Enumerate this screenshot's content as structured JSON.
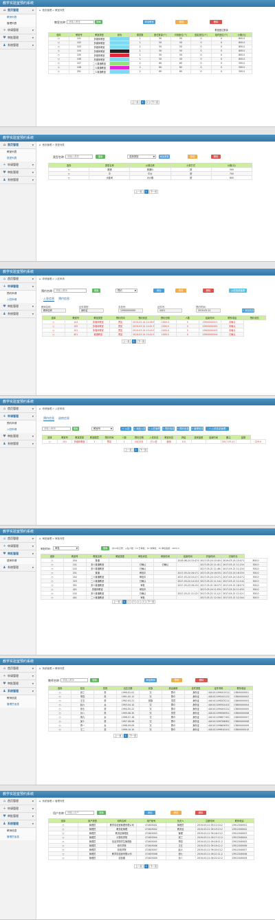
{
  "app_title": "教学实验室预约系统",
  "s1": {
    "menu": [
      {
        "icon": "home",
        "label": "首页管理",
        "active": true
      },
      {
        "sub": "教师列表",
        "active": true
      },
      {
        "sub": "管理列表"
      },
      {
        "icon": "plus",
        "label": "申请管理"
      },
      {
        "icon": "heart",
        "label": "审批管理"
      },
      {
        "icon": "user",
        "label": "系统管理"
      }
    ],
    "crumb": "首页管理 > 教室列表",
    "filter_label": "教室名称：",
    "filter_placeholder": "请输入教室",
    "search": "搜索",
    "b_add": "添加教室",
    "b_edit": "修改",
    "b_del": "删除",
    "group_header": "教室座位数量",
    "headers": [
      "选择",
      "教室号",
      "教室类型",
      "颜色",
      "楼层数",
      "座位数量(个)",
      "可用座位(个)",
      "固定座位(个)",
      "临时座位(个)",
      "价格(元)"
    ],
    "rows": [
      [
        "101",
        "多媒体教室",
        "",
        "1",
        "50",
        "50",
        "0",
        "0",
        "800.0"
      ],
      [
        "102",
        "多媒体教室",
        "",
        "1",
        "50",
        "50",
        "0",
        "0",
        "800.0"
      ],
      [
        "103",
        "多媒体教室",
        "",
        "1",
        "50",
        "50",
        "0",
        "0",
        "800.0"
      ],
      [
        "104",
        "多媒体教室",
        "",
        "1",
        "50",
        "50",
        "0",
        "0",
        "800.0"
      ],
      [
        "105",
        "多媒体教室",
        "",
        "1",
        "50",
        "50",
        "0",
        "0",
        "800.0"
      ],
      [
        "106",
        "多媒体教室",
        "",
        "1",
        "50",
        "50",
        "0",
        "0",
        "800.0"
      ],
      [
        "107",
        "二人普通教室",
        "",
        "2",
        "60",
        "60",
        "0",
        "0",
        "500.0"
      ],
      [
        "108",
        "二人普通教室",
        "",
        "2",
        "60",
        "60",
        "0",
        "0",
        "500.0"
      ],
      [
        "201",
        "二人普通教室",
        "",
        "2",
        "60",
        "60",
        "0",
        "0",
        "500.0"
      ]
    ],
    "colors": [
      "#7fd9f2",
      "#7fd9f2",
      "#7fd9f2",
      "#222222",
      "#e0263a",
      "#7fd9f2",
      "#98e07a",
      "#e028e0",
      "#7fd9f2"
    ],
    "pager": [
      "上一页",
      "1",
      "2",
      "下一页"
    ]
  },
  "s2": {
    "menu": [
      {
        "icon": "home",
        "label": "首页管理",
        "active": true
      },
      {
        "sub": "教室列表"
      },
      {
        "sub": "类型列表",
        "active": true
      },
      {
        "icon": "plus",
        "label": "申请管理"
      },
      {
        "icon": "heart",
        "label": "审批管理"
      },
      {
        "icon": "user",
        "label": "系统管理"
      }
    ],
    "crumb": "首页管理 > 类型列表",
    "filter_label": "类型名称：",
    "filter_placeholder": "请输入类型",
    "search": "搜索",
    "sel_value": "选择类型",
    "b_add": "添加类型",
    "b_edit": "修改",
    "b_del": "删除",
    "headers": [
      "选择",
      "类型名称",
      "价格名称",
      "计费方式",
      "价格(元)"
    ],
    "rows": [
      [
        "普通",
        "普通价",
        "按",
        "500"
      ],
      [
        "中",
        "中价",
        "按",
        "700"
      ],
      [
        "大套间",
        "大价格",
        "按",
        "800"
      ]
    ],
    "pager": [
      "上一页",
      "1",
      "下一页"
    ]
  },
  "s3": {
    "menu": [
      {
        "icon": "home",
        "label": "首页管理"
      },
      {
        "icon": "plus",
        "label": "申请管理",
        "active": true
      },
      {
        "sub": "预约申请"
      },
      {
        "sub": "入驻申请",
        "active": true
      },
      {
        "icon": "heart",
        "label": "审批管理"
      },
      {
        "icon": "user",
        "label": "系统管理"
      }
    ],
    "crumb": "申请管理 > 入驻申请",
    "filter_label": "预约名称：",
    "filter_placeholder": "请输入教师",
    "search": "搜索",
    "sel_value": "预约",
    "b_add": "添加",
    "b_edit": "修改",
    "b_del": "删除",
    "b_manage": "入驻信息管理",
    "tabs": [
      "入驻信息",
      "预约信息"
    ],
    "fields": [
      {
        "label": "教师名称：",
        "value": "教师名称"
      },
      {
        "label": "证件类型：",
        "value": "身份证"
      },
      {
        "label": "手机号：",
        "value": "13900000000"
      },
      {
        "label": "证件号：",
        "value": "4401"
      },
      {
        "label": "预约时间：",
        "value": "2019-03-21"
      }
    ],
    "b_add_info": "+ 添加信息",
    "headers": [
      "选择",
      "教室号",
      "教室类型",
      "预约时间",
      "预约状态",
      "预约日期",
      "人数",
      "结束时间",
      "联系电话",
      "预约状态"
    ],
    "rows": [
      [
        "103",
        "多媒体教室",
        "预定",
        "2019-03-24 14:46:51.0",
        "2000.0",
        "0",
        "13900000001",
        "未确认"
      ],
      [
        "105",
        "多媒体教室",
        "预定",
        "2019-03-24 14:51:51.0",
        "2000.0",
        "0",
        "13900000002",
        "未确认"
      ],
      [
        "101",
        "多媒体教室",
        "预定",
        "2019-03-24 15:45:51.0",
        "2000.0",
        "0",
        "13900000003",
        "未确认"
      ],
      [
        "401",
        "普通教室",
        "预定",
        "2019-03-24 15:42:51.0",
        "1000.0",
        "0",
        "13900000004",
        "已确认"
      ]
    ],
    "pager": [
      "上一页",
      "1",
      "下一页"
    ]
  },
  "s4": {
    "menu": [
      {
        "icon": "home",
        "label": "首页管理"
      },
      {
        "icon": "plus",
        "label": "申请管理",
        "active": true
      },
      {
        "sub": "预约申请"
      },
      {
        "sub": "入驻申请",
        "active": true
      },
      {
        "icon": "heart",
        "label": "审批管理"
      },
      {
        "icon": "user",
        "label": "系统管理"
      }
    ],
    "crumb": "申请管理 > 入驻申请",
    "tabs": [
      "预约信息",
      "退房信息"
    ],
    "filter_placeholder": "请输入教师",
    "search": "搜索",
    "sel_value": "教室号",
    "btns": [
      "+ 入驻",
      "+ 添加入驻",
      "+ 入驻管理",
      "+ 预约信息",
      "+ 预约信息",
      "+ 管理信息",
      "+ 入驻信息管理"
    ],
    "headers": [
      "选择",
      "教室号",
      "教室类型",
      "教室楼层",
      "预约时间",
      "人数",
      "预约日期",
      "入驻状态",
      "教室状态",
      "押金",
      "退房金额",
      "结束时间",
      "备注",
      "金额"
    ],
    "rows": [
      [
        "101",
        "多媒体教室",
        "1",
        "预定",
        "1",
        "5月13日",
        "已入驻",
        "使用",
        "0.0",
        "",
        "",
        "2017-03-21 11:23:00.0",
        "",
        "229.0"
      ]
    ],
    "pager": [
      "上一页",
      "1",
      "下一页"
    ]
  },
  "s5": {
    "menu": [
      {
        "icon": "home",
        "label": "首页管理"
      },
      {
        "icon": "plus",
        "label": "申请管理"
      },
      {
        "icon": "heart",
        "label": "审批管理",
        "active": true
      },
      {
        "sub": "退房申请"
      },
      {
        "icon": "user",
        "label": "系统管理"
      }
    ],
    "crumb": "审批管理 > 审批列表",
    "filter_label": "审批时间：",
    "sel_value": "审批",
    "search": "搜索",
    "summary": "共10条记录：入驻人数：10 已审批：10 未审批：10 审批金额：2650.0",
    "headers": [
      "选择",
      "教室号",
      "教室名称",
      "教室类型",
      "审批状态",
      "审批时间",
      "结束时间",
      "开始时间",
      "已用时长"
    ],
    "rows": [
      [
        "204",
        "普通",
        "",
        "",
        "",
        "2019-06-24 15:47:00.0",
        "2017-03-24 10:45:00.0",
        "2019-03-24 15:47:00.0",
        "800.0"
      ],
      [
        "101",
        "多人普通教室",
        "",
        "已确认",
        "已确认",
        "",
        "2017-03-21 11:41:21.0",
        "2017-03-21 11:23:00.0",
        "300.0"
      ],
      [
        "102",
        "多人普通教室",
        "",
        "已确认",
        "",
        "",
        "2017-03-21 11:46:11.0",
        "2017-03-21 11:23:00.0",
        "300.0"
      ],
      [
        "201",
        "普通",
        "",
        "审批中",
        "",
        "2017-03-24 16:17:21.0",
        "2017-03-24 16:33:00.0",
        "2017-03-24 16:33:00.0",
        "300.0"
      ],
      [
        "202",
        "二人普通教室",
        "",
        "审批中",
        "",
        "2017-03-24 10:27:21.0",
        "2017-03-24 10:27:21.0",
        "2017-03-24 10:27:21.0",
        "300.0"
      ],
      [
        "203",
        "二人普通教室",
        "",
        "已确认",
        "",
        "2017-03-24 14:12:01.0",
        "2017-03-21 11:14:22.0",
        "2017-03-21 11:14:22.0",
        "300.0"
      ],
      [
        "301",
        "多人普通教室",
        "",
        "审批",
        "",
        "2017-03-23 16:13:23.0",
        "2017-03-21 18:27:00.0",
        "2017-03-21 18:27:00.0",
        "300.0"
      ],
      [
        "401",
        "多媒体教室",
        "",
        "审批中",
        "",
        "",
        "2017-03-24 11:03:00.0",
        "2017-03-24 11:03:00.0",
        "300.0"
      ],
      [
        "102",
        "多人普通教室",
        "",
        "已确认",
        "",
        "2017-03-21 11:12:31.0",
        "2017-03-21 11:12:31.0",
        "2017-03-21 11:12:31.0",
        "300.0"
      ],
      [
        "401",
        "二人普通教室",
        "",
        "审批",
        "",
        "",
        "2017-03-21 12:34:03.0",
        "2017-03-21 12:34:03.0",
        "300.0"
      ]
    ],
    "pager": [
      "上一页",
      "1",
      "2",
      "3",
      "4",
      "5",
      "下一页"
    ]
  },
  "s6": {
    "menu": [
      {
        "icon": "home",
        "label": "首页管理"
      },
      {
        "icon": "plus",
        "label": "申请管理"
      },
      {
        "icon": "heart",
        "label": "审批管理"
      },
      {
        "icon": "user",
        "label": "系统管理",
        "active": true
      },
      {
        "sub": "教师信息"
      },
      {
        "sub": "管理员信息",
        "active": true
      }
    ],
    "crumb": "系统管理 > 教师列表",
    "filter_label": "教师名称：",
    "filter_placeholder": "请输入教师",
    "search": "搜索",
    "b_add": "添加教师",
    "b_edit": "修改",
    "b_del": "删除",
    "headers": [
      "选择",
      "姓名",
      "性别",
      "出生日期",
      "民族",
      "政治面貌",
      "证件类型",
      "证件号码",
      "联系电话"
    ],
    "rows": [
      [
        "张三",
        "男",
        "1990-01-01",
        "汉",
        "群众",
        "身份证",
        "440101199001011234",
        "13800000001"
      ],
      [
        "李四",
        "男",
        "1991-02-12",
        "汉",
        "群众",
        "身份证",
        "440101199102121234",
        "13800000002"
      ],
      [
        "王五",
        "男",
        "1992-03-21",
        "回族",
        "党员",
        "身份证",
        "440101199203211234",
        "13800000003"
      ],
      [
        "赵六",
        "女",
        "1993-04-10",
        "汉",
        "群众",
        "身份证",
        "440101199304101234",
        "13800000004"
      ],
      [
        "钱七",
        "男",
        "1994-05-22",
        "汉",
        "群众",
        "身份证",
        "440101199405221234",
        "13800000005"
      ],
      [
        "孙八",
        "男",
        "1995-06-30",
        "汉",
        "党员",
        "身份证",
        "440101199506301234",
        "13800000006"
      ],
      [
        "周九",
        "女",
        "1996-07-18",
        "汉",
        "群众",
        "身份证",
        "440101199607181234",
        "13800000007"
      ],
      [
        "吴十",
        "男",
        "1997-08-08",
        "汉",
        "群众",
        "身份证",
        "440101199708081234",
        "13800000008"
      ],
      [
        "郑一",
        "女",
        "1998-09-09",
        "汉",
        "群众",
        "身份证",
        "440101199809091234",
        "13800000009"
      ],
      [
        "王二",
        "男",
        "1999-10-10",
        "汉",
        "群众",
        "身份证",
        "440101199910101234",
        "13800000010"
      ]
    ],
    "pager": [
      "上一页",
      "1",
      "下一页"
    ]
  },
  "s7": {
    "menu": [
      {
        "icon": "home",
        "label": "首页管理"
      },
      {
        "icon": "plus",
        "label": "申请管理"
      },
      {
        "icon": "heart",
        "label": "审批管理"
      },
      {
        "icon": "user",
        "label": "系统管理",
        "active": true
      },
      {
        "sub": "教师信息"
      },
      {
        "sub": "管理员信息",
        "active": true
      }
    ],
    "crumb": "系统管理 > 管理列表",
    "filter_label": "用户名称：",
    "filter_placeholder": "请输入用户",
    "search": "搜索",
    "b_add": "添加",
    "b_edit": "修改",
    "b_del": "删除",
    "headers": [
      "选择",
      "用户类型",
      "机构名称",
      "用户帐号",
      "负责人",
      "注册时间",
      "联系电话"
    ],
    "rows": [
      [
        "管理员",
        "教学实验室管理有限公司",
        "LT1605001",
        "管理员",
        "2019-03-21 09:12:10.2",
        "13912340001"
      ],
      [
        "管理员",
        "教务处管理",
        "LT1605002",
        "教务处",
        "2019-03-21 09:15:13.2",
        "13912340002"
      ],
      [
        "管理员",
        "教务处管理处",
        "LT1605003",
        "管理",
        "2019-03-21 09:16:13.2",
        "13912340003"
      ],
      [
        "管理员",
        "计算机学院",
        "LT1605004",
        "张三",
        "2019-03-21 09:17:12.2",
        "13912340004"
      ],
      [
        "管理员",
        "信息学院学生管理处",
        "LT1605005",
        "李四",
        "2019-03-21 09:18:11.2",
        "13912340005"
      ],
      [
        "管理员",
        "软件学院",
        "LT1605006",
        "王五",
        "2019-03-21 09:19:12.2",
        "13912340006"
      ],
      [
        "管理员",
        "机电学院",
        "LT1605007",
        "赵六",
        "2019-03-21 09:20:13.2",
        "13912340007"
      ],
      [
        "管理员",
        "教学实验室有限公司",
        "LT1605008",
        "钱七",
        "2019-03-21 09:21:11.2",
        "13912340008"
      ],
      [
        "管理员",
        "实验楼",
        "LT1605009",
        "孙八",
        "2019-03-21 09:22:12.2",
        "13912340009"
      ]
    ],
    "pager": [
      "上一页",
      "1",
      "下一页"
    ]
  }
}
